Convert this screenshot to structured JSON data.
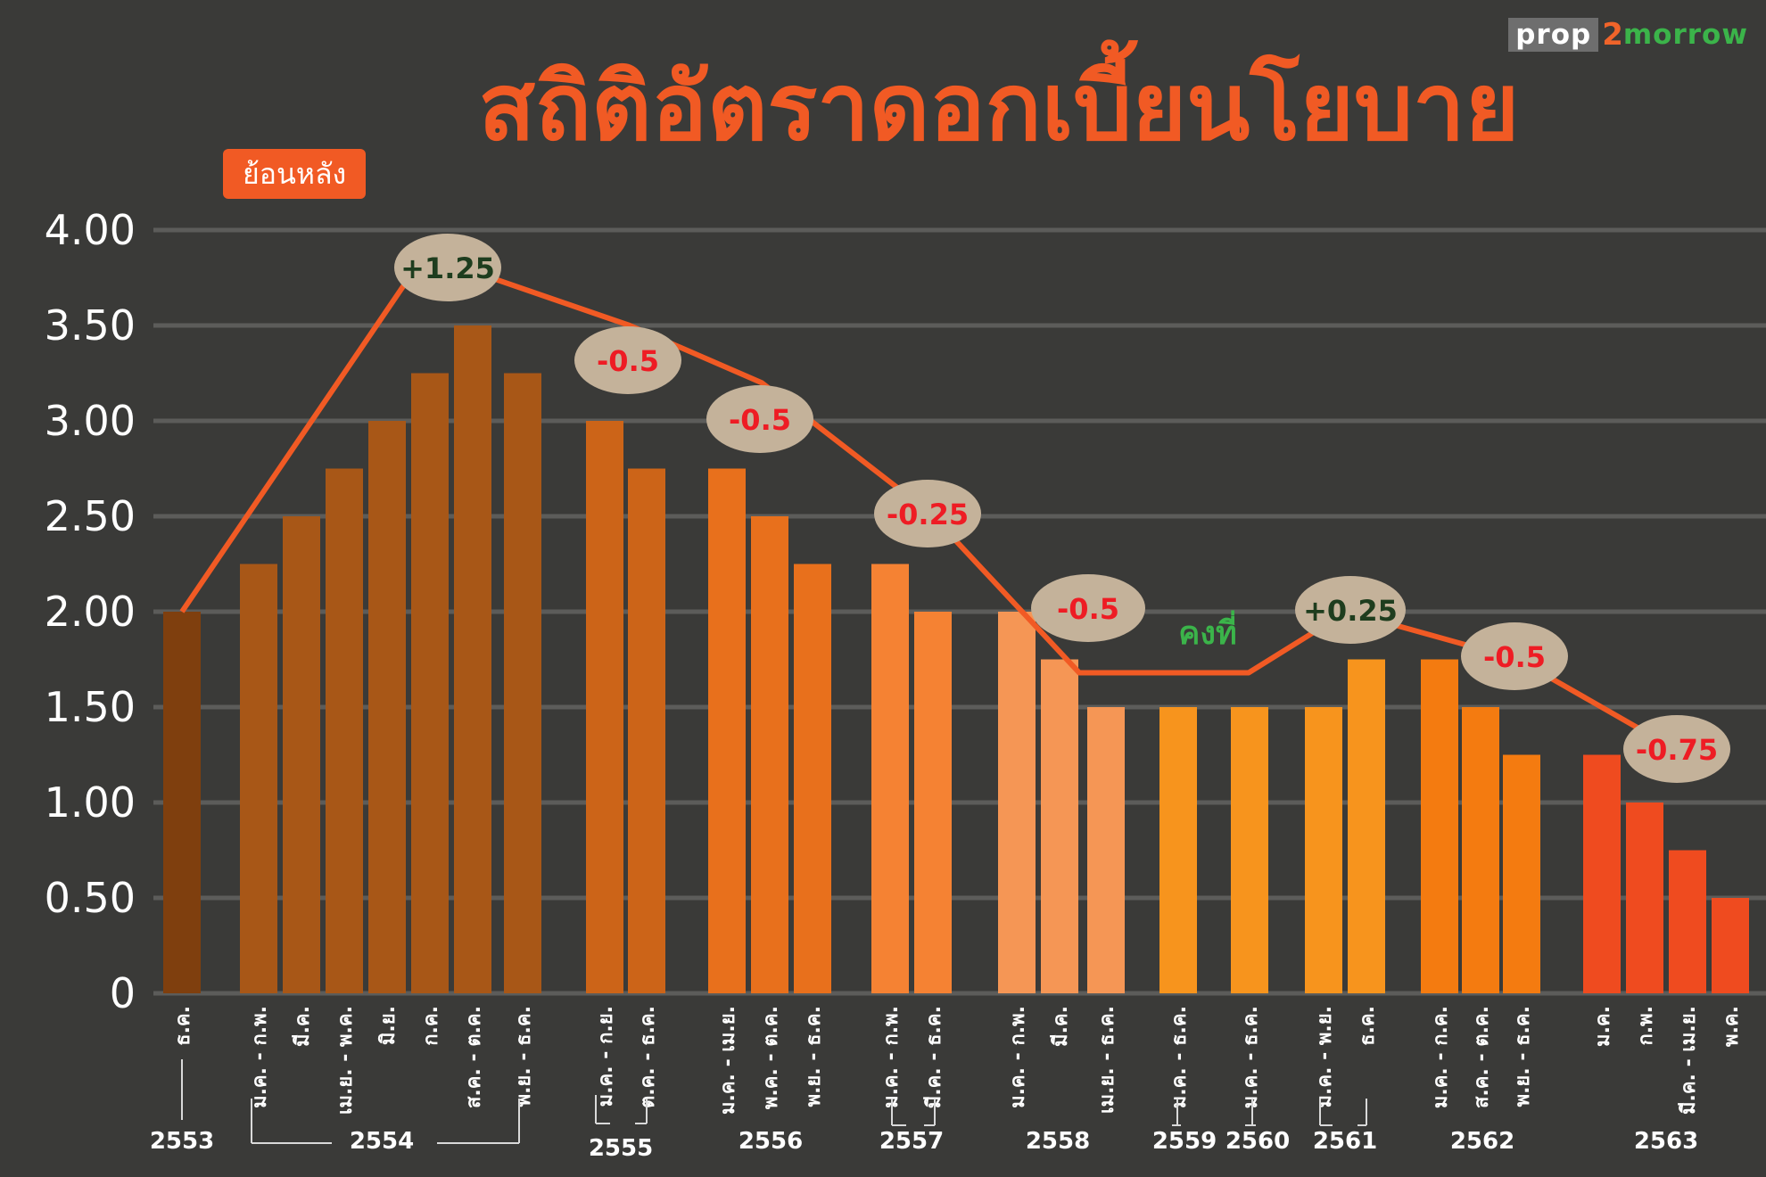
{
  "logo": {
    "part1": "prop",
    "part2": "2",
    "part3": "morrow"
  },
  "title": "สถิติอัตราดอกเบี้ยนโยบาย",
  "subtitle": "ย้อนหลัง",
  "chart_data": {
    "type": "bar",
    "title": "สถิติอัตราดอกเบี้ยนโยบาย",
    "subtitle": "ย้อนหลัง",
    "ylim": [
      0,
      4
    ],
    "yticks": [
      "0",
      "0.50",
      "1.00",
      "1.50",
      "2.00",
      "2.50",
      "3.00",
      "3.50",
      "4.00"
    ],
    "grid": true,
    "groups": [
      {
        "year": "2553",
        "color": "#7f3f0e",
        "bars": [
          {
            "label": "ธ.ค.",
            "value": 2.0
          }
        ]
      },
      {
        "year": "2554",
        "color": "#a85717",
        "bars": [
          {
            "label": "ม.ค. - ก.พ.",
            "value": 2.25
          },
          {
            "label": "มี.ค.",
            "value": 2.5
          },
          {
            "label": "เม.ย. - พ.ค.",
            "value": 2.75
          },
          {
            "label": "มิ.ย.",
            "value": 3.0
          },
          {
            "label": "ก.ค.",
            "value": 3.25
          },
          {
            "label": "ส.ค. - ต.ค.",
            "value": 3.5
          },
          {
            "label": "พ.ย. - ธ.ค.",
            "value": 3.25
          }
        ]
      },
      {
        "year": "2555",
        "color": "#cc6418",
        "bars": [
          {
            "label": "ม.ค. - ก.ย.",
            "value": 3.0
          },
          {
            "label": "ต.ค. - ธ.ค.",
            "value": 2.75
          }
        ]
      },
      {
        "year": "2556",
        "color": "#e8701c",
        "bars": [
          {
            "label": "ม.ค. - เม.ย.",
            "value": 2.75
          },
          {
            "label": "พ.ค. - ต.ค.",
            "value": 2.5
          },
          {
            "label": "พ.ย. - ธ.ค.",
            "value": 2.25
          }
        ]
      },
      {
        "year": "2557",
        "color": "#f58233",
        "bars": [
          {
            "label": "ม.ค. - ก.พ.",
            "value": 2.25
          },
          {
            "label": "มี.ค. - ธ.ค.",
            "value": 2.0
          }
        ]
      },
      {
        "year": "2558",
        "color": "#f59655",
        "bars": [
          {
            "label": "ม.ค. - ก.พ.",
            "value": 2.0
          },
          {
            "label": "มี.ค.",
            "value": 1.75
          },
          {
            "label": "เม.ย. - ธ.ค.",
            "value": 1.5
          }
        ]
      },
      {
        "year": "2559",
        "color": "#f7941d",
        "bars": [
          {
            "label": "ม.ค. - ธ.ค.",
            "value": 1.5
          }
        ]
      },
      {
        "year": "2560",
        "color": "#f7941d",
        "bars": [
          {
            "label": "ม.ค. - ธ.ค.",
            "value": 1.5
          }
        ]
      },
      {
        "year": "2561",
        "color": "#f7941d",
        "bars": [
          {
            "label": "ม.ค. - พ.ย.",
            "value": 1.5
          },
          {
            "label": "ธ.ค.",
            "value": 1.75
          }
        ]
      },
      {
        "year": "2562",
        "color": "#f47b10",
        "bars": [
          {
            "label": "ม.ค. - ก.ค.",
            "value": 1.75
          },
          {
            "label": "ส.ค. - ต.ค.",
            "value": 1.5
          },
          {
            "label": "พ.ย. - ธ.ค.",
            "value": 1.25
          }
        ]
      },
      {
        "year": "2563",
        "color": "#ef4b1f",
        "bars": [
          {
            "label": "ม.ค.",
            "value": 1.25
          },
          {
            "label": "ก.พ.",
            "value": 1.0
          },
          {
            "label": "มี.ค. - เม.ย.",
            "value": 0.75
          },
          {
            "label": "พ.ค.",
            "value": 0.5
          }
        ]
      }
    ],
    "trend_line_color": "#f15a24",
    "annotations": [
      {
        "text": "+1.25",
        "kind": "up"
      },
      {
        "text": "-0.5",
        "kind": "down"
      },
      {
        "text": "-0.5",
        "kind": "down"
      },
      {
        "text": "-0.25",
        "kind": "down"
      },
      {
        "text": "-0.5",
        "kind": "down"
      },
      {
        "text": "คงที่",
        "kind": "flat"
      },
      {
        "text": "+0.25",
        "kind": "up"
      },
      {
        "text": "-0.5",
        "kind": "down"
      },
      {
        "text": "-0.75",
        "kind": "down"
      }
    ]
  },
  "colors": {
    "background": "#3a3a38",
    "accent": "#f15a24",
    "grid": "#5c5c5a",
    "ellipse_fill": "#c4b29a",
    "up_text": "#1e3d1e",
    "down_text": "#ee1c24",
    "flat_text": "#3bb44a",
    "axis_text": "#ffffff"
  }
}
